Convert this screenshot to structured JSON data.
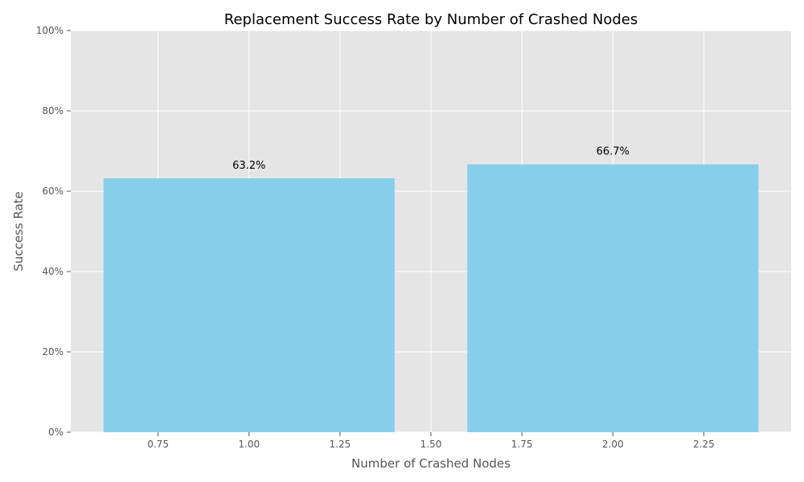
{
  "chart_data": {
    "type": "bar",
    "title": "Replacement Success Rate by Number of Crashed Nodes",
    "xlabel": "Number of Crashed Nodes",
    "ylabel": "Success Rate",
    "x": [
      1,
      2
    ],
    "values": [
      0.632,
      0.667
    ],
    "data_labels": [
      "63.2%",
      "66.7%"
    ],
    "bar_width": 0.8,
    "xlim": [
      0.51,
      2.49
    ],
    "ylim": [
      0,
      1
    ],
    "x_ticks": [
      0.75,
      1.0,
      1.25,
      1.5,
      1.75,
      2.0,
      2.25
    ],
    "x_tick_labels": [
      "0.75",
      "1.00",
      "1.25",
      "1.50",
      "1.75",
      "2.00",
      "2.25"
    ],
    "y_ticks": [
      0,
      0.2,
      0.4,
      0.6,
      0.8,
      1.0
    ],
    "y_tick_labels": [
      "0%",
      "20%",
      "40%",
      "60%",
      "80%",
      "100%"
    ],
    "grid": true,
    "colors": {
      "bar": "#87ceeb",
      "plot_background": "#e5e5e5",
      "grid": "#ffffff",
      "tick": "#555555"
    }
  }
}
